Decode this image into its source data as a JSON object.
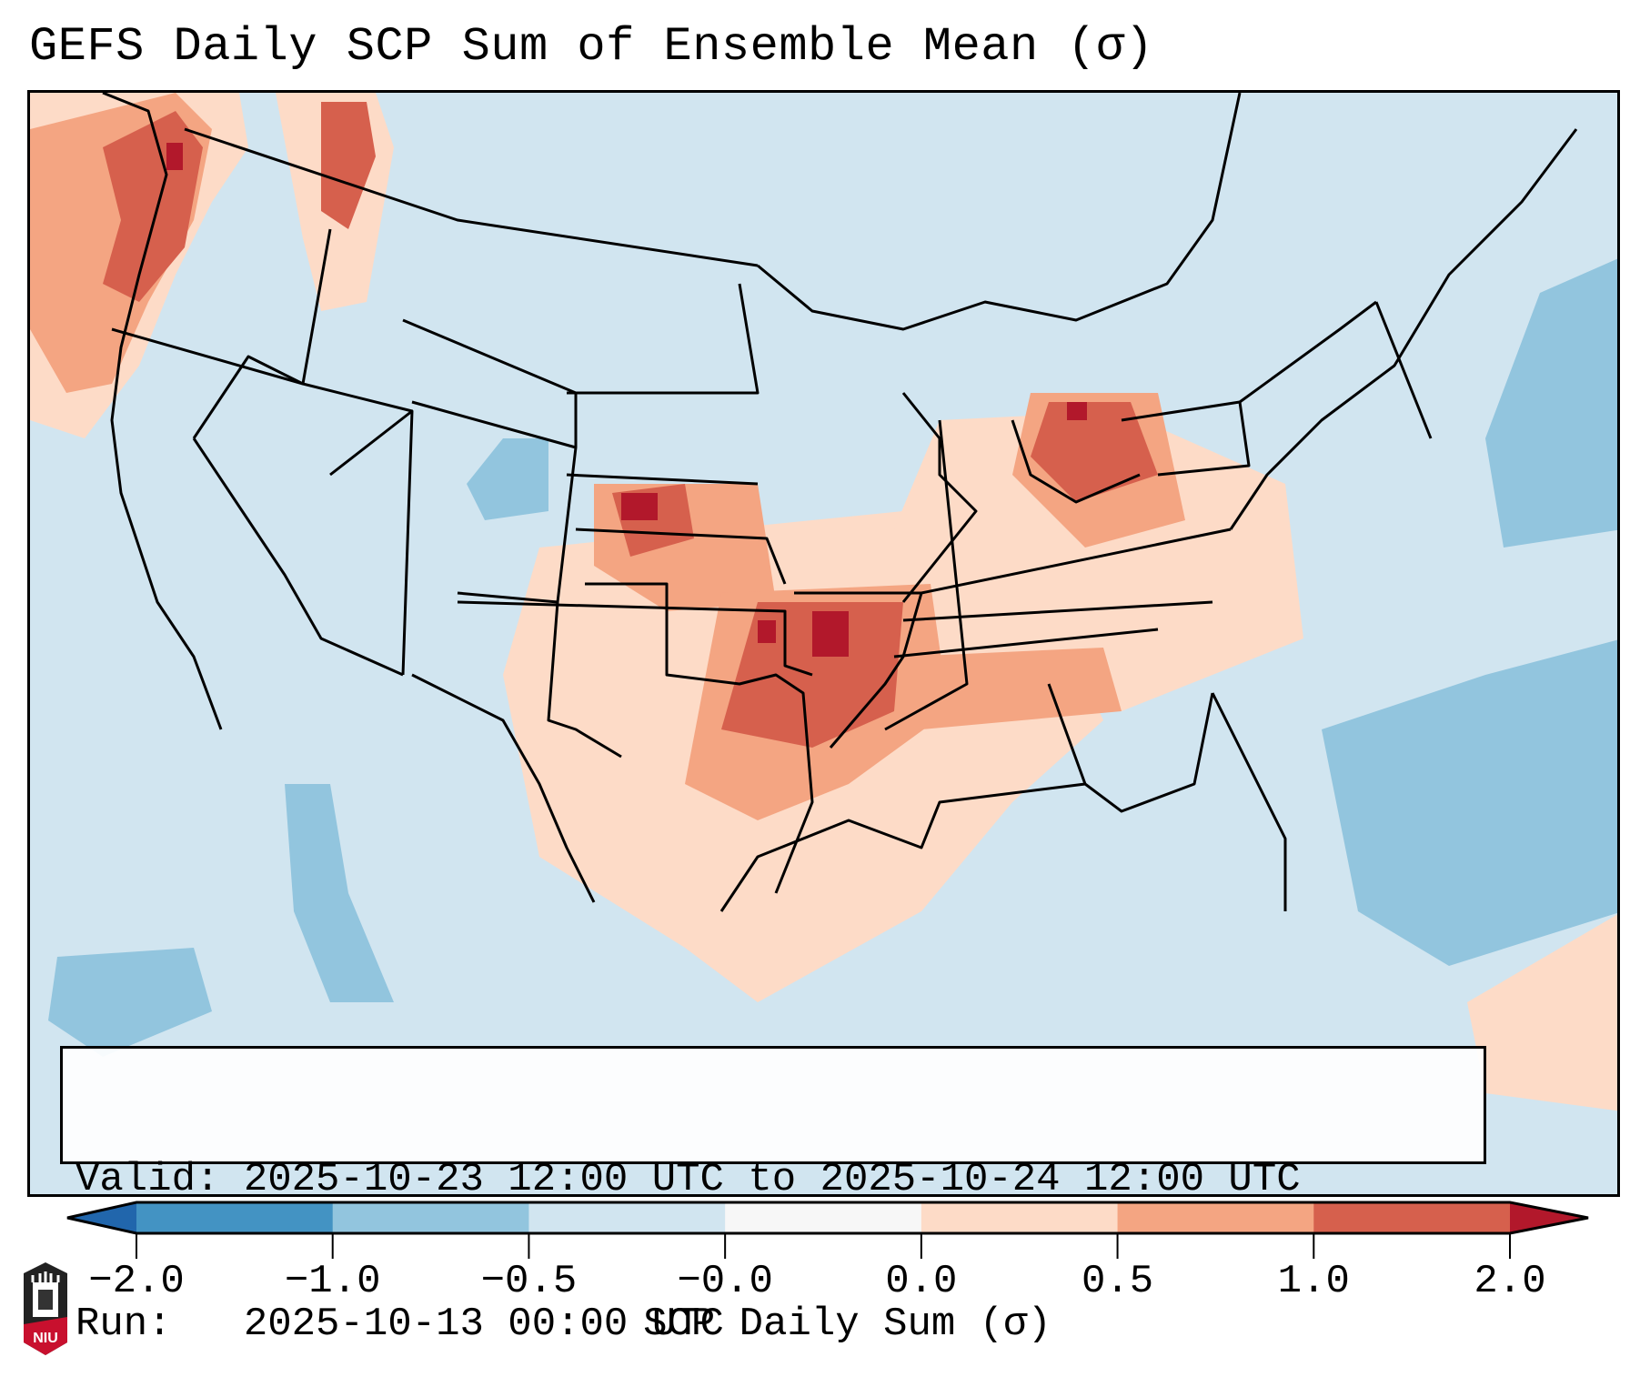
{
  "title": "GEFS Daily SCP Sum of Ensemble Mean (σ)",
  "map": {
    "description": "CONUS map of GEFS daily supercell composite parameter (SCP) sum anomaly, ensemble mean",
    "ocean_fill": "#d1e5f0",
    "regions": [
      {
        "name": "Pacific Northwest coast",
        "category": "0.5 to 1.0 / 1.0 to 2.0"
      },
      {
        "name": "Western Kansas",
        "category": "1.0 to 2.0 / >2.0"
      },
      {
        "name": "Oklahoma / Arkansas",
        "category": "1.0 to 2.0 / >2.0"
      },
      {
        "name": "Ohio / Indiana",
        "category": "1.0 to 2.0 / >2.0"
      },
      {
        "name": "Southern Plains and Tennessee Valley",
        "category": "0.0 to 0.5"
      },
      {
        "name": "Western Atlantic",
        "category": "-1.0 to -0.5"
      },
      {
        "name": "Eastern Pacific off Baja",
        "category": "-1.0 to -0.5"
      }
    ]
  },
  "info": {
    "valid_label": "Valid:",
    "valid_value": "2025-10-23 12:00 UTC to 2025-10-24 12:00 UTC",
    "run_label": "Run:",
    "run_value": "2025-10-13 00:00 UTC"
  },
  "colorbar": {
    "label": "SCP Daily Sum (σ)",
    "ticks": [
      "−2.0",
      "−1.0",
      "−0.5",
      "−0.0",
      "0.0",
      "0.5",
      "1.0",
      "2.0"
    ],
    "colors": {
      "under": "#2166ac",
      "bins": [
        "#4393c3",
        "#92c5de",
        "#d1e5f0",
        "#f7f7f7",
        "#fddbc7",
        "#f4a582",
        "#d6604d"
      ],
      "over": "#b2182b"
    }
  },
  "logo": {
    "text": "NIU",
    "accent": "#c8102e"
  }
}
